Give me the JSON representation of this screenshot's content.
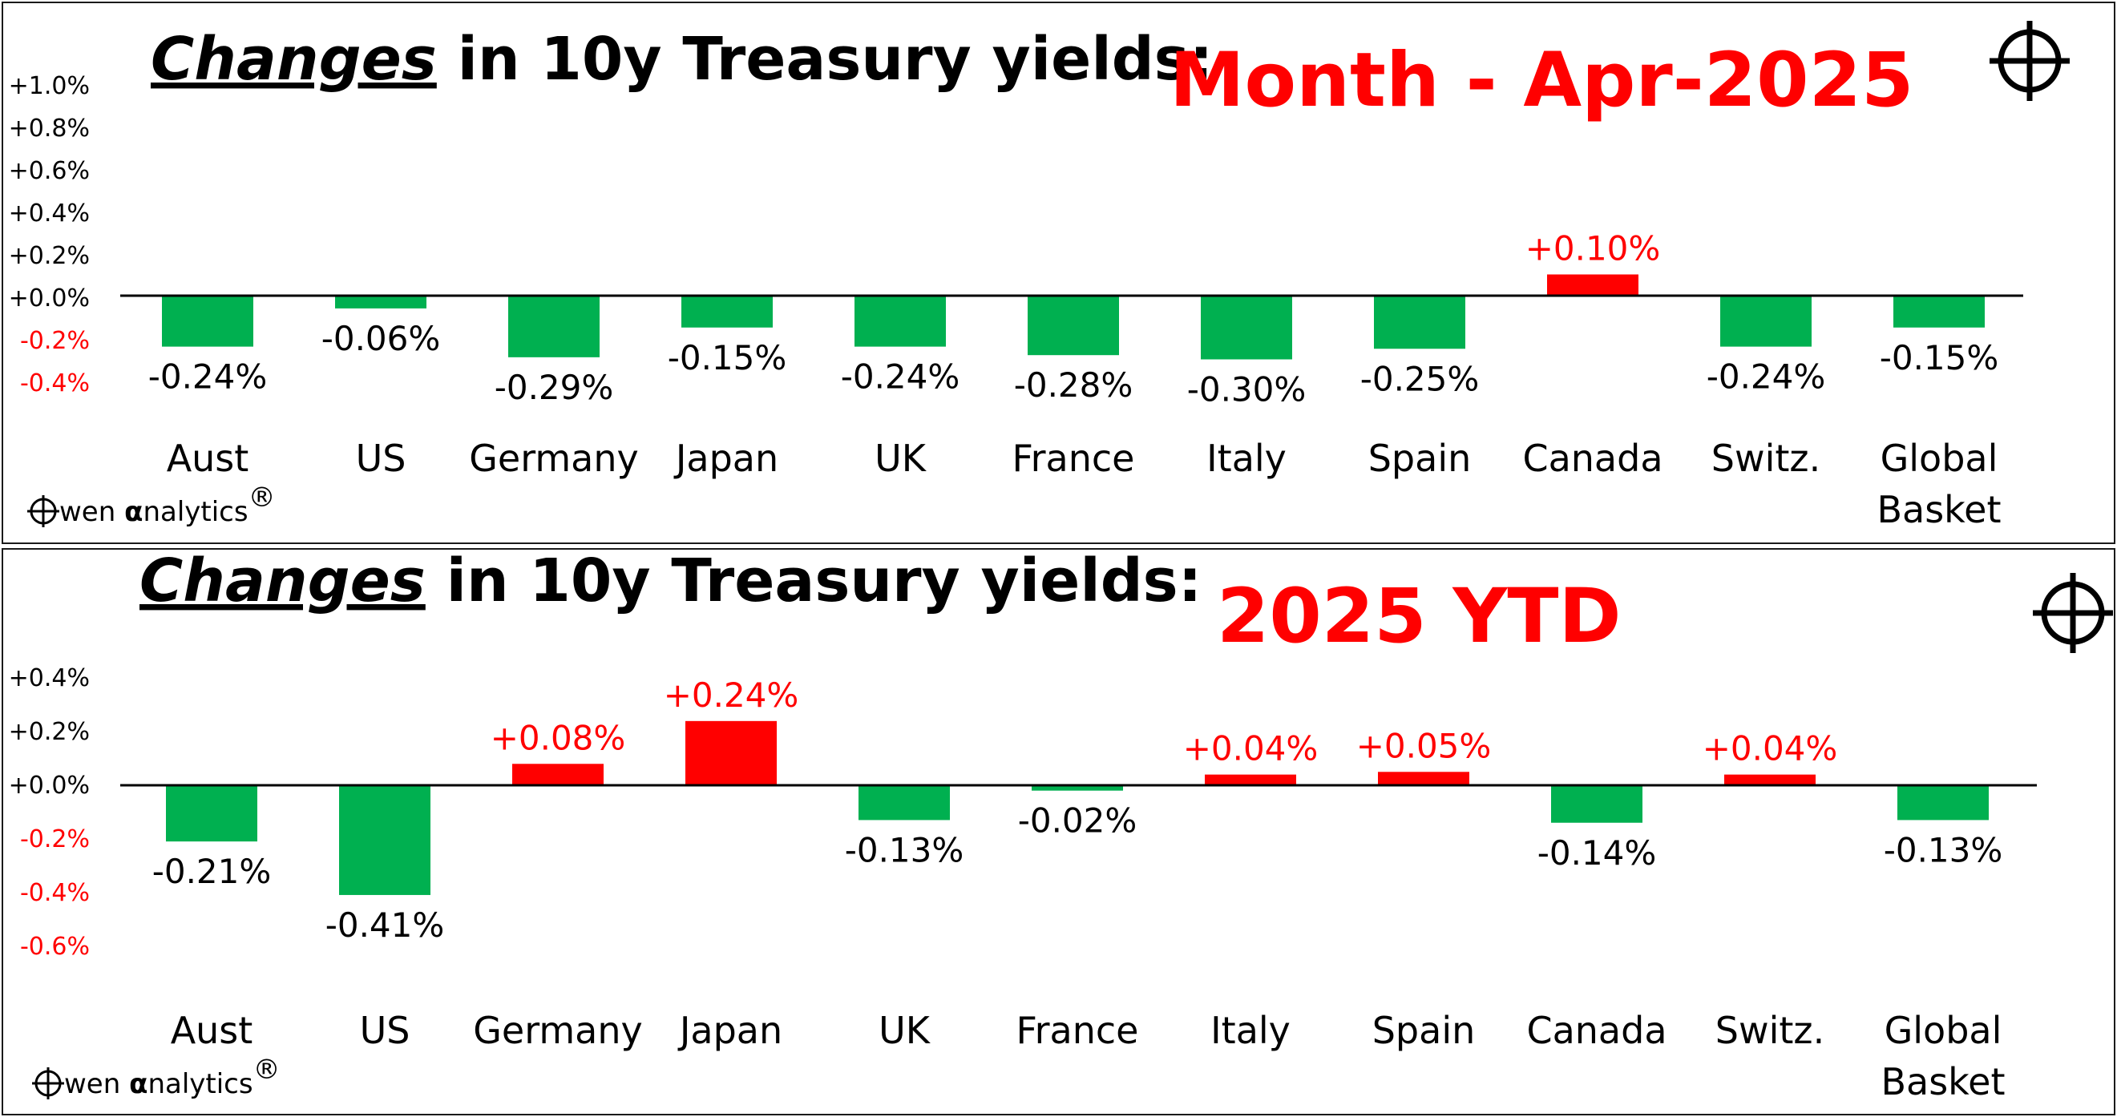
{
  "colors": {
    "positive": "#ff0000",
    "negative": "#00b050",
    "axis": "#000000"
  },
  "charts": [
    {
      "id": "month",
      "title_emph": "Changes",
      "title_rest": " in 10y Treasury yields:",
      "period": "Month -  Apr-2025",
      "brand": "wen ",
      "brand_alpha": "α",
      "brand_tail": "nalytics",
      "brand_reg": "®",
      "y_ticks": [
        "+1.0%",
        "+0.8%",
        "+0.6%",
        "+0.4%",
        "+0.2%",
        "+0.0%",
        "-0.2%",
        "-0.4%"
      ],
      "categories": [
        [
          "Aust"
        ],
        [
          "US"
        ],
        [
          "Germany"
        ],
        [
          "Japan"
        ],
        [
          "UK"
        ],
        [
          "France"
        ],
        [
          "Italy"
        ],
        [
          "Spain"
        ],
        [
          "Canada"
        ],
        [
          "Switz."
        ],
        [
          "Global",
          "Basket"
        ]
      ],
      "value_labels": [
        "-0.24%",
        "-0.06%",
        "-0.29%",
        "-0.15%",
        "-0.24%",
        "-0.28%",
        "-0.30%",
        "-0.25%",
        "+0.10%",
        "-0.24%",
        "-0.15%"
      ]
    },
    {
      "id": "ytd",
      "title_emph": "Changes",
      "title_rest": " in 10y Treasury yields:",
      "period": "2025 YTD",
      "brand": "wen ",
      "brand_alpha": "α",
      "brand_tail": "nalytics",
      "brand_reg": "®",
      "y_ticks": [
        "+0.4%",
        "+0.2%",
        "+0.0%",
        "-0.2%",
        "-0.4%",
        "-0.6%"
      ],
      "categories": [
        [
          "Aust"
        ],
        [
          "US"
        ],
        [
          "Germany"
        ],
        [
          "Japan"
        ],
        [
          "UK"
        ],
        [
          "France"
        ],
        [
          "Italy"
        ],
        [
          "Spain"
        ],
        [
          "Canada"
        ],
        [
          "Switz."
        ],
        [
          "Global",
          "Basket"
        ]
      ],
      "value_labels": [
        "-0.21%",
        "-0.41%",
        "+0.08%",
        "+0.24%",
        "-0.13%",
        "-0.02%",
        "+0.04%",
        "+0.05%",
        "-0.14%",
        "+0.04%",
        "-0.13%"
      ]
    }
  ],
  "chart_data": [
    {
      "type": "bar",
      "title": "Changes in 10y Treasury yields: Month -  Apr-2025",
      "categories": [
        "Aust",
        "US",
        "Germany",
        "Japan",
        "UK",
        "France",
        "Italy",
        "Spain",
        "Canada",
        "Switz.",
        "Global Basket"
      ],
      "values": [
        -0.24,
        -0.06,
        -0.29,
        -0.15,
        -0.24,
        -0.28,
        -0.3,
        -0.25,
        0.1,
        -0.24,
        -0.15
      ],
      "ylim": [
        -0.4,
        1.0
      ],
      "unit": "%",
      "grid": false,
      "legend": "none"
    },
    {
      "type": "bar",
      "title": "Changes in 10y Treasury yields: 2025 YTD",
      "categories": [
        "Aust",
        "US",
        "Germany",
        "Japan",
        "UK",
        "France",
        "Italy",
        "Spain",
        "Canada",
        "Switz.",
        "Global Basket"
      ],
      "values": [
        -0.21,
        -0.41,
        0.08,
        0.24,
        -0.13,
        -0.02,
        0.04,
        0.05,
        -0.14,
        0.04,
        -0.13
      ],
      "ylim": [
        -0.6,
        0.4
      ],
      "unit": "%",
      "grid": false,
      "legend": "none"
    }
  ]
}
